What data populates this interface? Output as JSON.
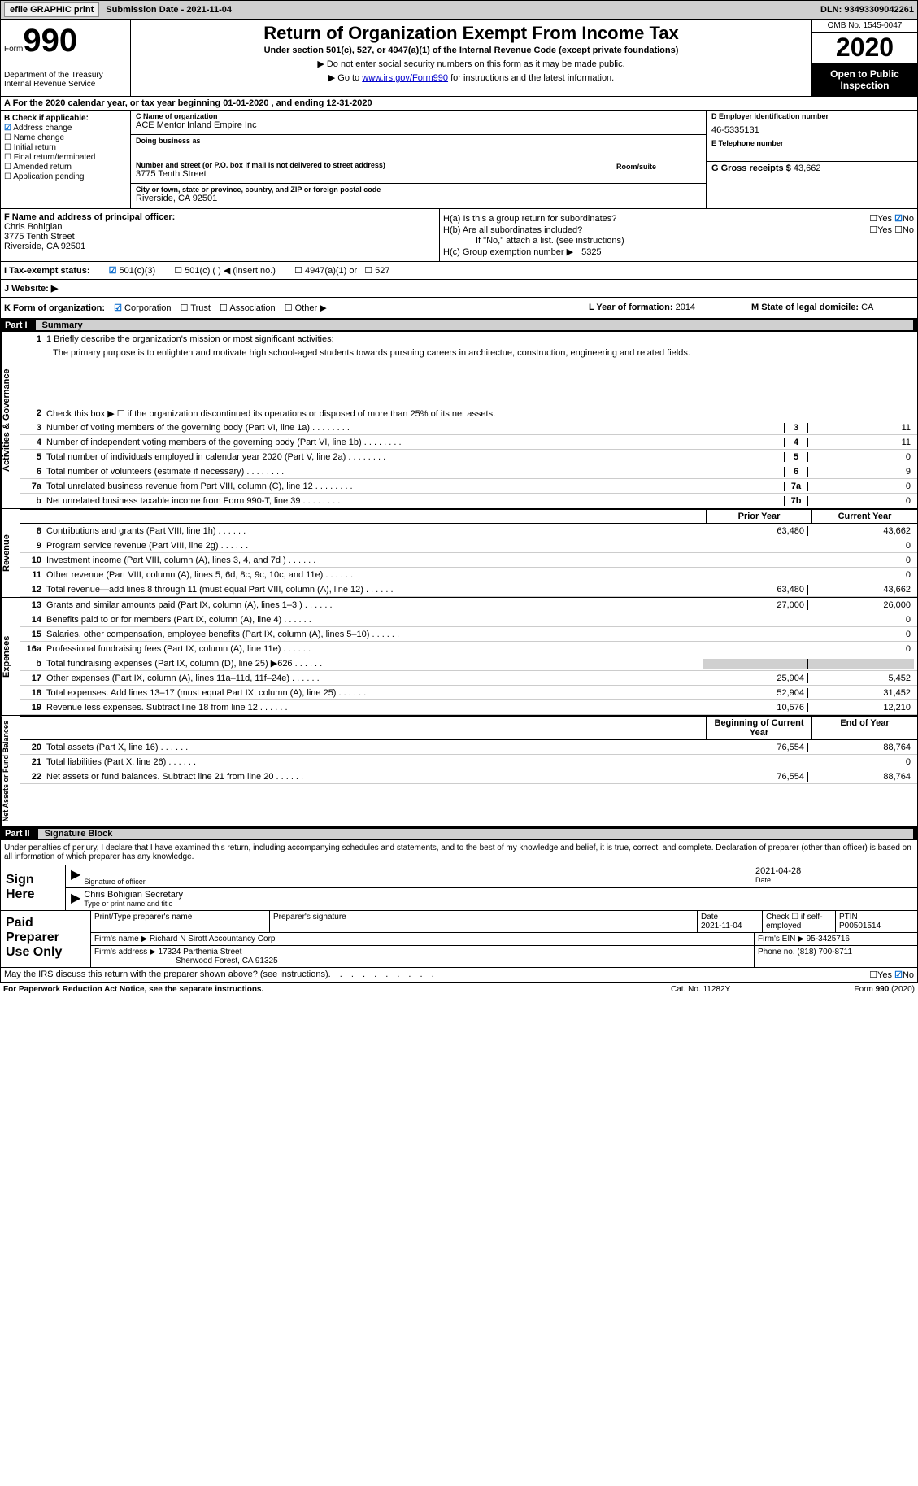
{
  "topbar": {
    "efile_btn": "efile GRAPHIC print",
    "submission_label": "Submission Date - 2021-11-04",
    "dln": "DLN: 93493309042261"
  },
  "header": {
    "form_label": "Form",
    "form_number": "990",
    "dept": "Department of the Treasury\nInternal Revenue Service",
    "title": "Return of Organization Exempt From Income Tax",
    "subtitle": "Under section 501(c), 527, or 4947(a)(1) of the Internal Revenue Code (except private foundations)",
    "note1": "▶ Do not enter social security numbers on this form as it may be made public.",
    "note2_pre": "▶ Go to ",
    "note2_link": "www.irs.gov/Form990",
    "note2_post": " for instructions and the latest information.",
    "omb": "OMB No. 1545-0047",
    "year": "2020",
    "inspection": "Open to Public Inspection"
  },
  "row_a": "A For the 2020 calendar year, or tax year beginning 01-01-2020   , and ending 12-31-2020",
  "box_b": {
    "title": "B Check if applicable:",
    "items": [
      "Address change",
      "Name change",
      "Initial return",
      "Final return/terminated",
      "Amended return",
      "Application pending"
    ],
    "checked": [
      true,
      false,
      false,
      false,
      false,
      false
    ]
  },
  "box_c": {
    "name_label": "C Name of organization",
    "name": "ACE Mentor Inland Empire Inc",
    "dba_label": "Doing business as",
    "dba": "",
    "addr_label": "Number and street (or P.O. box if mail is not delivered to street address)",
    "room_label": "Room/suite",
    "addr": "3775 Tenth Street",
    "city_label": "City or town, state or province, country, and ZIP or foreign postal code",
    "city": "Riverside, CA  92501"
  },
  "box_d": {
    "label": "D Employer identification number",
    "value": "46-5335131"
  },
  "box_e": {
    "label": "E Telephone number",
    "value": ""
  },
  "box_g": {
    "label": "G Gross receipts $",
    "value": "43,662"
  },
  "box_f": {
    "label": "F  Name and address of principal officer:",
    "name": "Chris Bohigian",
    "addr1": "3775 Tenth Street",
    "addr2": "Riverside, CA  92501"
  },
  "box_h": {
    "ha_label": "H(a)  Is this a group return for subordinates?",
    "ha_no_checked": true,
    "hb_label": "H(b)  Are all subordinates included?",
    "hb_note": "If \"No,\" attach a list. (see instructions)",
    "hc_label": "H(c)  Group exemption number ▶",
    "hc_value": "5325"
  },
  "row_i": {
    "label": "I   Tax-exempt status:",
    "opts": [
      "501(c)(3)",
      "501(c) (  ) ◀ (insert no.)",
      "4947(a)(1) or",
      "527"
    ],
    "checked": [
      true,
      false,
      false,
      false
    ]
  },
  "row_j": {
    "label": "J   Website: ▶",
    "value": ""
  },
  "row_k": {
    "k_label": "K Form of organization:",
    "k_opts": [
      "Corporation",
      "Trust",
      "Association",
      "Other ▶"
    ],
    "k_checked": [
      true,
      false,
      false,
      false
    ],
    "l_label": "L Year of formation:",
    "l_value": "2014",
    "m_label": "M State of legal domicile:",
    "m_value": "CA"
  },
  "part1": {
    "header_num": "Part I",
    "header_title": "Summary",
    "line1_label": "1  Briefly describe the organization's mission or most significant activities:",
    "mission": "The primary purpose is to enlighten and motivate high school-aged students towards pursuing careers in architectue, construction, engineering and related fields.",
    "line2": "Check this box ▶ ☐  if the organization discontinued its operations or disposed of more than 25% of its net assets.",
    "governance_label": "Activities & Governance",
    "revenue_label": "Revenue",
    "expenses_label": "Expenses",
    "netassets_label": "Net Assets or Fund Balances",
    "lines_gov": [
      {
        "n": "3",
        "d": "Number of voting members of the governing body (Part VI, line 1a)",
        "box": "3",
        "v": "11"
      },
      {
        "n": "4",
        "d": "Number of independent voting members of the governing body (Part VI, line 1b)",
        "box": "4",
        "v": "11"
      },
      {
        "n": "5",
        "d": "Total number of individuals employed in calendar year 2020 (Part V, line 2a)",
        "box": "5",
        "v": "0"
      },
      {
        "n": "6",
        "d": "Total number of volunteers (estimate if necessary)",
        "box": "6",
        "v": "9"
      },
      {
        "n": "7a",
        "d": "Total unrelated business revenue from Part VIII, column (C), line 12",
        "box": "7a",
        "v": "0"
      },
      {
        "n": "b",
        "d": "Net unrelated business taxable income from Form 990-T, line 39",
        "box": "7b",
        "v": "0"
      }
    ],
    "col_prior": "Prior Year",
    "col_current": "Current Year",
    "lines_rev": [
      {
        "n": "8",
        "d": "Contributions and grants (Part VIII, line 1h)",
        "p": "63,480",
        "c": "43,662"
      },
      {
        "n": "9",
        "d": "Program service revenue (Part VIII, line 2g)",
        "p": "",
        "c": "0"
      },
      {
        "n": "10",
        "d": "Investment income (Part VIII, column (A), lines 3, 4, and 7d )",
        "p": "",
        "c": "0"
      },
      {
        "n": "11",
        "d": "Other revenue (Part VIII, column (A), lines 5, 6d, 8c, 9c, 10c, and 11e)",
        "p": "",
        "c": "0"
      },
      {
        "n": "12",
        "d": "Total revenue—add lines 8 through 11 (must equal Part VIII, column (A), line 12)",
        "p": "63,480",
        "c": "43,662"
      }
    ],
    "lines_exp": [
      {
        "n": "13",
        "d": "Grants and similar amounts paid (Part IX, column (A), lines 1–3 )",
        "p": "27,000",
        "c": "26,000"
      },
      {
        "n": "14",
        "d": "Benefits paid to or for members (Part IX, column (A), line 4)",
        "p": "",
        "c": "0"
      },
      {
        "n": "15",
        "d": "Salaries, other compensation, employee benefits (Part IX, column (A), lines 5–10)",
        "p": "",
        "c": "0"
      },
      {
        "n": "16a",
        "d": "Professional fundraising fees (Part IX, column (A), line 11e)",
        "p": "",
        "c": "0"
      },
      {
        "n": "b",
        "d": "Total fundraising expenses (Part IX, column (D), line 25) ▶626",
        "p": "shaded",
        "c": "shaded"
      },
      {
        "n": "17",
        "d": "Other expenses (Part IX, column (A), lines 11a–11d, 11f–24e)",
        "p": "25,904",
        "c": "5,452"
      },
      {
        "n": "18",
        "d": "Total expenses. Add lines 13–17 (must equal Part IX, column (A), line 25)",
        "p": "52,904",
        "c": "31,452"
      },
      {
        "n": "19",
        "d": "Revenue less expenses. Subtract line 18 from line 12",
        "p": "10,576",
        "c": "12,210"
      }
    ],
    "col_begin": "Beginning of Current Year",
    "col_end": "End of Year",
    "lines_net": [
      {
        "n": "20",
        "d": "Total assets (Part X, line 16)",
        "p": "76,554",
        "c": "88,764"
      },
      {
        "n": "21",
        "d": "Total liabilities (Part X, line 26)",
        "p": "",
        "c": "0"
      },
      {
        "n": "22",
        "d": "Net assets or fund balances. Subtract line 21 from line 20",
        "p": "76,554",
        "c": "88,764"
      }
    ]
  },
  "part2": {
    "header_num": "Part II",
    "header_title": "Signature Block",
    "declaration": "Under penalties of perjury, I declare that I have examined this return, including accompanying schedules and statements, and to the best of my knowledge and belief, it is true, correct, and complete. Declaration of preparer (other than officer) is based on all information of which preparer has any knowledge.",
    "sign_here": "Sign Here",
    "sig_officer_label": "Signature of officer",
    "sig_date_label": "Date",
    "sig_date": "2021-04-28",
    "sig_name": "Chris Bohigian  Secretary",
    "sig_name_label": "Type or print name and title",
    "paid_prep": "Paid Preparer Use Only",
    "prep_name_label": "Print/Type preparer's name",
    "prep_sig_label": "Preparer's signature",
    "prep_date_label": "Date",
    "prep_date": "2021-11-04",
    "prep_check_label": "Check ☐ if self-employed",
    "ptin_label": "PTIN",
    "ptin": "P00501514",
    "firm_name_label": "Firm's name    ▶",
    "firm_name": "Richard N Sirott Accountancy Corp",
    "firm_ein_label": "Firm's EIN ▶",
    "firm_ein": "95-3425716",
    "firm_addr_label": "Firm's address ▶",
    "firm_addr1": "17324 Parthenia Street",
    "firm_addr2": "Sherwood Forest, CA  91325",
    "phone_label": "Phone no.",
    "phone": "(818) 700-8711",
    "discuss": "May the IRS discuss this return with the preparer shown above? (see instructions)",
    "discuss_no_checked": true
  },
  "footer": {
    "left": "For Paperwork Reduction Act Notice, see the separate instructions.",
    "mid": "Cat. No. 11282Y",
    "right": "Form 990 (2020)"
  }
}
